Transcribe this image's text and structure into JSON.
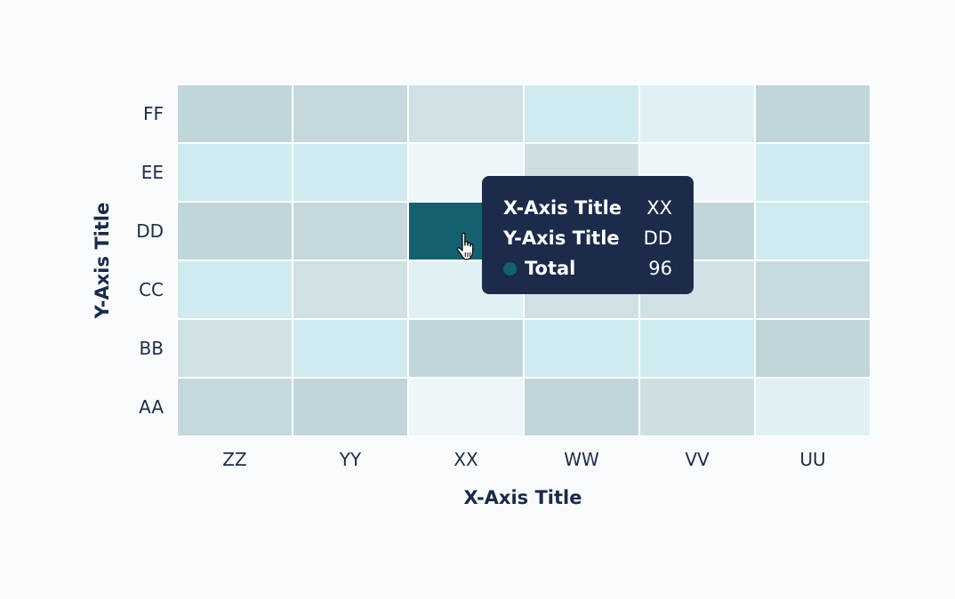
{
  "chart_data": {
    "type": "heatmap",
    "title": "",
    "xlabel": "X-Axis Title",
    "ylabel": "Y-Axis Title",
    "x": [
      "ZZ",
      "YY",
      "XX",
      "WW",
      "VV",
      "UU"
    ],
    "y": [
      "FF",
      "EE",
      "DD",
      "CC",
      "BB",
      "AA"
    ],
    "values": [
      [
        30,
        28,
        20,
        12,
        6,
        30
      ],
      [
        12,
        12,
        3,
        22,
        4,
        12
      ],
      [
        30,
        28,
        96,
        24,
        30,
        12
      ],
      [
        10,
        20,
        5,
        20,
        20,
        26
      ],
      [
        20,
        12,
        30,
        10,
        12,
        30
      ],
      [
        28,
        30,
        3,
        30,
        22,
        8
      ]
    ],
    "color_range": [
      "#eef7fa",
      "#15606f"
    ],
    "grid": false,
    "legend": "none"
  },
  "tooltip": {
    "x_title": "X-Axis Title",
    "x_value": "XX",
    "y_title": "Y-Axis Title",
    "y_value": "DD",
    "total_label": "Total",
    "total_value": "96",
    "dot_color": "#15606f"
  },
  "cursor": {
    "icon": "pointer-hand-icon"
  }
}
